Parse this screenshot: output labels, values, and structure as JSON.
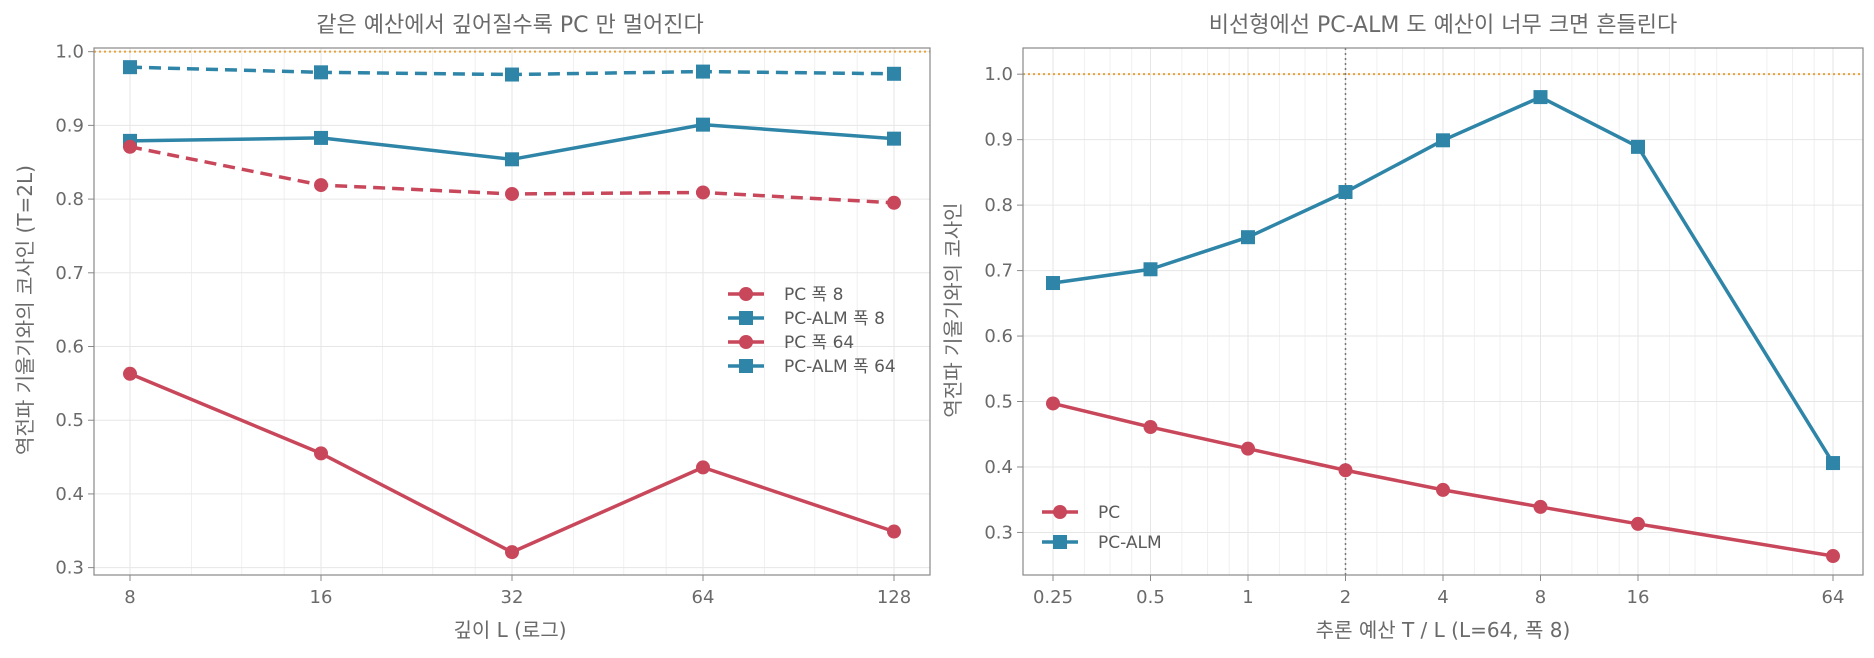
{
  "colors": {
    "pc": "#c9475b",
    "pcalm": "#2e85a8",
    "ref": "#e8a33a",
    "grid": "#e6e6e6",
    "axis": "#888888"
  },
  "chart_data": [
    {
      "type": "line",
      "title": "같은 예산에서 깊어질수록 PC 만 멀어진다",
      "xlabel": "깊이 L (로그)",
      "ylabel": "역전파 기울기와의 코사인 (T=2L)",
      "x_scale": "log2",
      "x": [
        8,
        16,
        32,
        64,
        128
      ],
      "xticks": [
        "8",
        "16",
        "32",
        "64",
        "128"
      ],
      "ylim": [
        0.29,
        1.005
      ],
      "yticks": [
        "0.3",
        "0.4",
        "0.5",
        "0.6",
        "0.7",
        "0.8",
        "0.9",
        "1.0"
      ],
      "reference_line": 1.0,
      "legend_placement": "center-right",
      "grid": true,
      "series": [
        {
          "name": "PC  폭 8",
          "values": [
            0.563,
            0.455,
            0.321,
            0.436,
            0.349
          ],
          "marker": "circle",
          "dash": "solid",
          "color_key": "pc"
        },
        {
          "name": "PC-ALM  폭 8",
          "values": [
            0.879,
            0.883,
            0.854,
            0.901,
            0.882
          ],
          "marker": "square",
          "dash": "solid",
          "color_key": "pcalm"
        },
        {
          "name": "PC  폭 64",
          "values": [
            0.871,
            0.819,
            0.807,
            0.809,
            0.795
          ],
          "marker": "circle",
          "dash": "dashed",
          "color_key": "pc"
        },
        {
          "name": "PC-ALM  폭 64",
          "values": [
            0.979,
            0.972,
            0.969,
            0.973,
            0.97
          ],
          "marker": "square",
          "dash": "dashed",
          "color_key": "pcalm"
        }
      ]
    },
    {
      "type": "line",
      "title": "비선형에선 PC-ALM 도 예산이 너무 크면 흔들린다",
      "xlabel": "추론 예산 T / L  (L=64, 폭 8)",
      "ylabel": "역전파 기울기와의 코사인",
      "x_scale": "log2",
      "x": [
        0.25,
        0.5,
        1,
        2,
        4,
        8,
        16,
        64
      ],
      "xticks": [
        "0.25",
        "0.5",
        "1",
        "2",
        "4",
        "8",
        "16",
        "64"
      ],
      "ylim": [
        0.235,
        1.04
      ],
      "yticks": [
        "0.3",
        "0.4",
        "0.5",
        "0.6",
        "0.7",
        "0.8",
        "0.9",
        "1.0"
      ],
      "reference_line": 1.0,
      "vertical_line": 2,
      "legend_placement": "lower-left",
      "grid": true,
      "series": [
        {
          "name": "PC",
          "values": [
            0.497,
            0.461,
            0.428,
            0.395,
            0.365,
            0.339,
            0.313,
            0.264
          ],
          "marker": "circle",
          "dash": "solid",
          "color_key": "pc"
        },
        {
          "name": "PC-ALM",
          "values": [
            0.681,
            0.702,
            0.751,
            0.82,
            0.899,
            0.965,
            0.889,
            0.406
          ],
          "marker": "square",
          "dash": "solid",
          "color_key": "pcalm"
        }
      ]
    }
  ]
}
